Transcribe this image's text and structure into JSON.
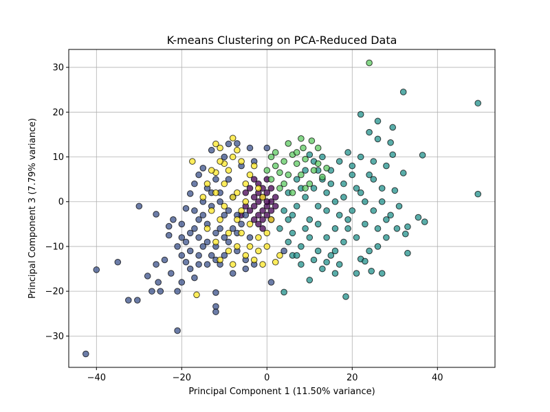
{
  "chart_data": {
    "type": "scatter",
    "title": "K-means Clustering on PCA-Reduced Data",
    "xlabel": "Principal Component 1 (11.50% variance)",
    "ylabel": "Principal Component 3 (7.79% variance)",
    "xlim": [
      -46.5,
      53.5
    ],
    "ylim": [
      -37,
      34
    ],
    "xticks": [
      -40,
      -20,
      0,
      20,
      40
    ],
    "yticks": [
      -30,
      -20,
      -10,
      0,
      10,
      20,
      30
    ],
    "xtick_labels": [
      "−40",
      "−20",
      "0",
      "20",
      "40"
    ],
    "ytick_labels": [
      "−30",
      "−20",
      "−10",
      "0",
      "10",
      "20",
      "30"
    ],
    "grid": true,
    "legend": "none",
    "colors": {
      "cluster_0": "#440154",
      "cluster_1": "#3b528b",
      "cluster_2": "#21918c",
      "cluster_3": "#5ec962",
      "cluster_4": "#fde725"
    },
    "series": [
      {
        "color": "#440154",
        "points": [
          [
            -3,
            -1
          ],
          [
            -2,
            0
          ],
          [
            -1,
            -2
          ],
          [
            0,
            -1
          ],
          [
            -2,
            -3
          ],
          [
            1,
            0
          ],
          [
            -1,
            1
          ],
          [
            -3,
            -4
          ],
          [
            0,
            -3
          ],
          [
            -4,
            -2
          ],
          [
            -1,
            -4
          ],
          [
            1,
            -2
          ],
          [
            -2,
            2
          ],
          [
            0,
            2
          ],
          [
            -3,
            1
          ],
          [
            -5,
            -1
          ],
          [
            2,
            -1
          ],
          [
            -1,
            -6
          ],
          [
            0,
            0
          ],
          [
            -2,
            -5
          ],
          [
            1,
            3
          ],
          [
            -4,
            3
          ],
          [
            -6,
            -3
          ],
          [
            2,
            1
          ],
          [
            -1,
            3
          ],
          [
            -3,
            5
          ],
          [
            0,
            5
          ],
          [
            1,
            -4
          ],
          [
            -2,
            4
          ],
          [
            -5,
            2
          ]
        ]
      },
      {
        "color": "#3b528b",
        "points": [
          [
            -42.5,
            -34
          ],
          [
            -40,
            -15.2
          ],
          [
            -35,
            -13.5
          ],
          [
            -32.5,
            -22
          ],
          [
            -30,
            -1
          ],
          [
            -30.4,
            -22
          ],
          [
            -28,
            -16.6
          ],
          [
            -27,
            -20
          ],
          [
            -26,
            -14
          ],
          [
            -25.5,
            -18
          ],
          [
            -25,
            -20
          ],
          [
            -24,
            -13
          ],
          [
            -23,
            -5.5
          ],
          [
            -22.5,
            -16
          ],
          [
            -21,
            -28.8
          ],
          [
            -21,
            -20
          ],
          [
            -20,
            -18
          ],
          [
            -19,
            -13.5
          ],
          [
            -18,
            -15
          ],
          [
            -17,
            -17
          ],
          [
            -16,
            -14
          ],
          [
            -12,
            -23.4
          ],
          [
            -12,
            -24.6
          ],
          [
            -12,
            -20.3
          ],
          [
            -26,
            -2.8
          ],
          [
            -23,
            -7.5
          ],
          [
            -20,
            -5
          ],
          [
            -19,
            -1.5
          ],
          [
            -18,
            1.8
          ],
          [
            -17,
            4
          ],
          [
            -16,
            6
          ],
          [
            -15,
            7.5
          ],
          [
            -14,
            3
          ],
          [
            -13,
            11.5
          ],
          [
            -12,
            5
          ],
          [
            -11,
            2
          ],
          [
            -10,
            10
          ],
          [
            -9,
            12.9
          ],
          [
            -7,
            13
          ],
          [
            -4,
            12
          ],
          [
            0,
            12
          ],
          [
            -3,
            9
          ],
          [
            -16,
            -8
          ],
          [
            -15,
            -10
          ],
          [
            -14,
            -5
          ],
          [
            -13,
            -12
          ],
          [
            -12,
            -7
          ],
          [
            -11,
            -14
          ],
          [
            -10,
            -3
          ],
          [
            -9,
            -9
          ],
          [
            -8,
            -16
          ],
          [
            -7,
            -11
          ],
          [
            -6,
            -5
          ],
          [
            -5,
            -13
          ],
          [
            -4,
            -8
          ],
          [
            -3,
            -14
          ],
          [
            -20,
            -8
          ],
          [
            -18,
            -11
          ],
          [
            -17,
            -2
          ],
          [
            -15,
            0
          ],
          [
            -13,
            -1
          ],
          [
            -11,
            -6
          ],
          [
            -9,
            -2
          ],
          [
            -7,
            -7
          ],
          [
            -5,
            -3
          ],
          [
            -16,
            -4
          ],
          [
            -14,
            -9
          ],
          [
            -12,
            -13
          ],
          [
            -10,
            -12
          ],
          [
            -8,
            -6
          ],
          [
            -19,
            -9
          ],
          [
            -21,
            -10
          ],
          [
            -22,
            -4
          ],
          [
            -17,
            -6
          ],
          [
            -15,
            -3
          ],
          [
            -13,
            2
          ],
          [
            -11,
            0
          ],
          [
            -9,
            5
          ],
          [
            -8,
            1
          ],
          [
            -6,
            8
          ],
          [
            -5,
            -15
          ],
          [
            -7,
            -3
          ],
          [
            -10,
            -8
          ],
          [
            1,
            -18
          ],
          [
            4,
            -11
          ],
          [
            -14,
            -14
          ],
          [
            -18,
            -7
          ],
          [
            -12,
            -10
          ],
          [
            -16,
            -12
          ],
          [
            -20,
            -12
          ]
        ]
      },
      {
        "color": "#21918c",
        "points": [
          [
            49.5,
            22
          ],
          [
            49.5,
            1.7
          ],
          [
            32,
            24.5
          ],
          [
            29.5,
            16.6
          ],
          [
            26,
            18
          ],
          [
            24,
            15.5
          ],
          [
            22,
            19.5
          ],
          [
            26,
            14
          ],
          [
            29,
            13.2
          ],
          [
            29.5,
            10.5
          ],
          [
            36.5,
            10.4
          ],
          [
            28,
            8
          ],
          [
            32,
            6.4
          ],
          [
            25,
            5
          ],
          [
            27,
            3
          ],
          [
            30,
            2.5
          ],
          [
            35.5,
            -3.5
          ],
          [
            37,
            -4.5
          ],
          [
            33,
            -5.6
          ],
          [
            30.5,
            -6
          ],
          [
            32.5,
            -7.2
          ],
          [
            28,
            -8
          ],
          [
            26,
            -10
          ],
          [
            24,
            -11
          ],
          [
            33,
            -11.5
          ],
          [
            22,
            -12.8
          ],
          [
            23,
            -13.3
          ],
          [
            21,
            -16
          ],
          [
            24.5,
            -15.5
          ],
          [
            27,
            -16
          ],
          [
            18.5,
            -21.2
          ],
          [
            16,
            -16
          ],
          [
            14,
            -13.5
          ],
          [
            12,
            -11
          ],
          [
            10,
            -17.5
          ],
          [
            8,
            -14
          ],
          [
            4,
            -20.2
          ],
          [
            6,
            -12
          ],
          [
            3,
            -6
          ],
          [
            5,
            -4
          ],
          [
            7,
            -1
          ],
          [
            9,
            1
          ],
          [
            11,
            3
          ],
          [
            13,
            5
          ],
          [
            15,
            7
          ],
          [
            17,
            9
          ],
          [
            19,
            11
          ],
          [
            20,
            8
          ],
          [
            18,
            4
          ],
          [
            16,
            0
          ],
          [
            14,
            -2
          ],
          [
            12,
            -5
          ],
          [
            10,
            -8
          ],
          [
            8,
            -10
          ],
          [
            6,
            -7
          ],
          [
            4,
            -2
          ],
          [
            5,
            2
          ],
          [
            7,
            5
          ],
          [
            9,
            7
          ],
          [
            11,
            9
          ],
          [
            13,
            10
          ],
          [
            15,
            4
          ],
          [
            17,
            -3
          ],
          [
            19,
            -6
          ],
          [
            21,
            -8
          ],
          [
            23,
            -5
          ],
          [
            25,
            -2
          ],
          [
            27,
            0
          ],
          [
            29,
            -3
          ],
          [
            31,
            -1
          ],
          [
            22,
            2
          ],
          [
            24,
            6
          ],
          [
            20,
            -2
          ],
          [
            18,
            -9
          ],
          [
            16,
            -11
          ],
          [
            14,
            -8
          ],
          [
            12,
            -1
          ],
          [
            10,
            -4
          ],
          [
            8,
            3
          ],
          [
            6,
            -3
          ],
          [
            5,
            -9
          ],
          [
            7,
            -12
          ],
          [
            9,
            -6
          ],
          [
            11,
            -13
          ],
          [
            13,
            -15
          ],
          [
            15,
            -12
          ],
          [
            17,
            -14
          ],
          [
            19,
            -4
          ],
          [
            21,
            3
          ],
          [
            23,
            0
          ],
          [
            26,
            -6
          ],
          [
            28,
            -4
          ],
          [
            25,
            9
          ],
          [
            22,
            10
          ],
          [
            20,
            6
          ],
          [
            18,
            1
          ],
          [
            16,
            -6
          ],
          [
            14,
            2
          ],
          [
            12,
            7
          ],
          [
            10,
            10.5
          ]
        ]
      },
      {
        "color": "#5ec962",
        "points": [
          [
            24,
            31
          ],
          [
            8,
            14.1
          ],
          [
            10.5,
            13.6
          ],
          [
            12,
            12
          ],
          [
            8.5,
            12
          ],
          [
            5,
            13
          ],
          [
            6,
            10.5
          ],
          [
            4,
            9
          ],
          [
            2,
            8
          ],
          [
            1,
            5
          ],
          [
            3,
            3
          ],
          [
            5,
            6
          ],
          [
            7,
            8.5
          ],
          [
            9,
            9.5
          ],
          [
            11,
            7
          ],
          [
            13,
            5.5
          ],
          [
            2,
            11
          ],
          [
            4,
            4
          ],
          [
            6,
            2
          ],
          [
            8,
            6
          ],
          [
            10,
            4
          ],
          [
            0,
            7
          ],
          [
            1,
            10
          ],
          [
            3,
            6.5
          ],
          [
            12,
            8.5
          ],
          [
            14,
            7.5
          ],
          [
            7,
            11
          ],
          [
            9,
            3
          ]
        ]
      },
      {
        "color": "#fde725",
        "points": [
          [
            -16.5,
            -20.8
          ],
          [
            -17.5,
            9
          ],
          [
            -12,
            12.9
          ],
          [
            -11,
            12
          ],
          [
            -8,
            14.2
          ],
          [
            -7,
            11.5
          ],
          [
            -10,
            8.5
          ],
          [
            -12,
            6.5
          ],
          [
            -14,
            4
          ],
          [
            -15,
            1
          ],
          [
            -13,
            -2
          ],
          [
            -11,
            -4
          ],
          [
            -9,
            -7
          ],
          [
            -7,
            -10
          ],
          [
            -5,
            -12
          ],
          [
            -3,
            -13
          ],
          [
            -1,
            -14
          ],
          [
            2,
            -13.5
          ],
          [
            0,
            -10
          ],
          [
            -2,
            -8
          ],
          [
            -4,
            -5
          ],
          [
            -6,
            -2
          ],
          [
            -8,
            1
          ],
          [
            -10,
            4
          ],
          [
            -9,
            7
          ],
          [
            -6,
            9
          ],
          [
            -4,
            6
          ],
          [
            -2,
            3
          ],
          [
            -5,
            0
          ],
          [
            -7,
            -4
          ],
          [
            -9,
            -11
          ],
          [
            -11,
            -13
          ],
          [
            -12,
            -9
          ],
          [
            -8,
            -14
          ],
          [
            -4,
            -10
          ],
          [
            0,
            -7
          ],
          [
            1,
            -4
          ],
          [
            -1,
            1
          ],
          [
            -3,
            8
          ],
          [
            -5,
            4
          ],
          [
            -7,
            2
          ],
          [
            -10,
            -1
          ],
          [
            -12,
            2
          ],
          [
            -14,
            -6
          ],
          [
            -6,
            -7
          ],
          [
            -2,
            -11
          ],
          [
            3,
            -12
          ],
          [
            -8,
            10
          ],
          [
            -11,
            9
          ],
          [
            -13,
            7
          ]
        ]
      }
    ]
  }
}
